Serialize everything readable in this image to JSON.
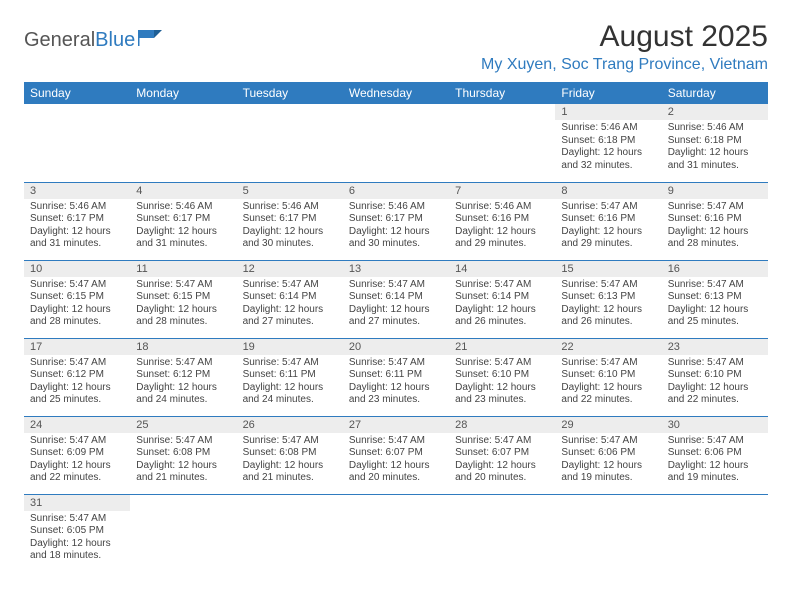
{
  "brand": {
    "part1": "General",
    "part2": "Blue"
  },
  "title": "August 2025",
  "location": "My Xuyen, Soc Trang Province, Vietnam",
  "colors": {
    "header_bg": "#2f7bbf",
    "header_text": "#ffffff",
    "daynum_bg": "#ededed",
    "border": "#2f7bbf",
    "brand_blue": "#2f7bbf"
  },
  "weekdays": [
    "Sunday",
    "Monday",
    "Tuesday",
    "Wednesday",
    "Thursday",
    "Friday",
    "Saturday"
  ],
  "weeks": [
    [
      null,
      null,
      null,
      null,
      null,
      {
        "n": "1",
        "sr": "Sunrise: 5:46 AM",
        "ss": "Sunset: 6:18 PM",
        "dl1": "Daylight: 12 hours",
        "dl2": "and 32 minutes."
      },
      {
        "n": "2",
        "sr": "Sunrise: 5:46 AM",
        "ss": "Sunset: 6:18 PM",
        "dl1": "Daylight: 12 hours",
        "dl2": "and 31 minutes."
      }
    ],
    [
      {
        "n": "3",
        "sr": "Sunrise: 5:46 AM",
        "ss": "Sunset: 6:17 PM",
        "dl1": "Daylight: 12 hours",
        "dl2": "and 31 minutes."
      },
      {
        "n": "4",
        "sr": "Sunrise: 5:46 AM",
        "ss": "Sunset: 6:17 PM",
        "dl1": "Daylight: 12 hours",
        "dl2": "and 31 minutes."
      },
      {
        "n": "5",
        "sr": "Sunrise: 5:46 AM",
        "ss": "Sunset: 6:17 PM",
        "dl1": "Daylight: 12 hours",
        "dl2": "and 30 minutes."
      },
      {
        "n": "6",
        "sr": "Sunrise: 5:46 AM",
        "ss": "Sunset: 6:17 PM",
        "dl1": "Daylight: 12 hours",
        "dl2": "and 30 minutes."
      },
      {
        "n": "7",
        "sr": "Sunrise: 5:46 AM",
        "ss": "Sunset: 6:16 PM",
        "dl1": "Daylight: 12 hours",
        "dl2": "and 29 minutes."
      },
      {
        "n": "8",
        "sr": "Sunrise: 5:47 AM",
        "ss": "Sunset: 6:16 PM",
        "dl1": "Daylight: 12 hours",
        "dl2": "and 29 minutes."
      },
      {
        "n": "9",
        "sr": "Sunrise: 5:47 AM",
        "ss": "Sunset: 6:16 PM",
        "dl1": "Daylight: 12 hours",
        "dl2": "and 28 minutes."
      }
    ],
    [
      {
        "n": "10",
        "sr": "Sunrise: 5:47 AM",
        "ss": "Sunset: 6:15 PM",
        "dl1": "Daylight: 12 hours",
        "dl2": "and 28 minutes."
      },
      {
        "n": "11",
        "sr": "Sunrise: 5:47 AM",
        "ss": "Sunset: 6:15 PM",
        "dl1": "Daylight: 12 hours",
        "dl2": "and 28 minutes."
      },
      {
        "n": "12",
        "sr": "Sunrise: 5:47 AM",
        "ss": "Sunset: 6:14 PM",
        "dl1": "Daylight: 12 hours",
        "dl2": "and 27 minutes."
      },
      {
        "n": "13",
        "sr": "Sunrise: 5:47 AM",
        "ss": "Sunset: 6:14 PM",
        "dl1": "Daylight: 12 hours",
        "dl2": "and 27 minutes."
      },
      {
        "n": "14",
        "sr": "Sunrise: 5:47 AM",
        "ss": "Sunset: 6:14 PM",
        "dl1": "Daylight: 12 hours",
        "dl2": "and 26 minutes."
      },
      {
        "n": "15",
        "sr": "Sunrise: 5:47 AM",
        "ss": "Sunset: 6:13 PM",
        "dl1": "Daylight: 12 hours",
        "dl2": "and 26 minutes."
      },
      {
        "n": "16",
        "sr": "Sunrise: 5:47 AM",
        "ss": "Sunset: 6:13 PM",
        "dl1": "Daylight: 12 hours",
        "dl2": "and 25 minutes."
      }
    ],
    [
      {
        "n": "17",
        "sr": "Sunrise: 5:47 AM",
        "ss": "Sunset: 6:12 PM",
        "dl1": "Daylight: 12 hours",
        "dl2": "and 25 minutes."
      },
      {
        "n": "18",
        "sr": "Sunrise: 5:47 AM",
        "ss": "Sunset: 6:12 PM",
        "dl1": "Daylight: 12 hours",
        "dl2": "and 24 minutes."
      },
      {
        "n": "19",
        "sr": "Sunrise: 5:47 AM",
        "ss": "Sunset: 6:11 PM",
        "dl1": "Daylight: 12 hours",
        "dl2": "and 24 minutes."
      },
      {
        "n": "20",
        "sr": "Sunrise: 5:47 AM",
        "ss": "Sunset: 6:11 PM",
        "dl1": "Daylight: 12 hours",
        "dl2": "and 23 minutes."
      },
      {
        "n": "21",
        "sr": "Sunrise: 5:47 AM",
        "ss": "Sunset: 6:10 PM",
        "dl1": "Daylight: 12 hours",
        "dl2": "and 23 minutes."
      },
      {
        "n": "22",
        "sr": "Sunrise: 5:47 AM",
        "ss": "Sunset: 6:10 PM",
        "dl1": "Daylight: 12 hours",
        "dl2": "and 22 minutes."
      },
      {
        "n": "23",
        "sr": "Sunrise: 5:47 AM",
        "ss": "Sunset: 6:10 PM",
        "dl1": "Daylight: 12 hours",
        "dl2": "and 22 minutes."
      }
    ],
    [
      {
        "n": "24",
        "sr": "Sunrise: 5:47 AM",
        "ss": "Sunset: 6:09 PM",
        "dl1": "Daylight: 12 hours",
        "dl2": "and 22 minutes."
      },
      {
        "n": "25",
        "sr": "Sunrise: 5:47 AM",
        "ss": "Sunset: 6:08 PM",
        "dl1": "Daylight: 12 hours",
        "dl2": "and 21 minutes."
      },
      {
        "n": "26",
        "sr": "Sunrise: 5:47 AM",
        "ss": "Sunset: 6:08 PM",
        "dl1": "Daylight: 12 hours",
        "dl2": "and 21 minutes."
      },
      {
        "n": "27",
        "sr": "Sunrise: 5:47 AM",
        "ss": "Sunset: 6:07 PM",
        "dl1": "Daylight: 12 hours",
        "dl2": "and 20 minutes."
      },
      {
        "n": "28",
        "sr": "Sunrise: 5:47 AM",
        "ss": "Sunset: 6:07 PM",
        "dl1": "Daylight: 12 hours",
        "dl2": "and 20 minutes."
      },
      {
        "n": "29",
        "sr": "Sunrise: 5:47 AM",
        "ss": "Sunset: 6:06 PM",
        "dl1": "Daylight: 12 hours",
        "dl2": "and 19 minutes."
      },
      {
        "n": "30",
        "sr": "Sunrise: 5:47 AM",
        "ss": "Sunset: 6:06 PM",
        "dl1": "Daylight: 12 hours",
        "dl2": "and 19 minutes."
      }
    ],
    [
      {
        "n": "31",
        "sr": "Sunrise: 5:47 AM",
        "ss": "Sunset: 6:05 PM",
        "dl1": "Daylight: 12 hours",
        "dl2": "and 18 minutes."
      },
      null,
      null,
      null,
      null,
      null,
      null
    ]
  ]
}
